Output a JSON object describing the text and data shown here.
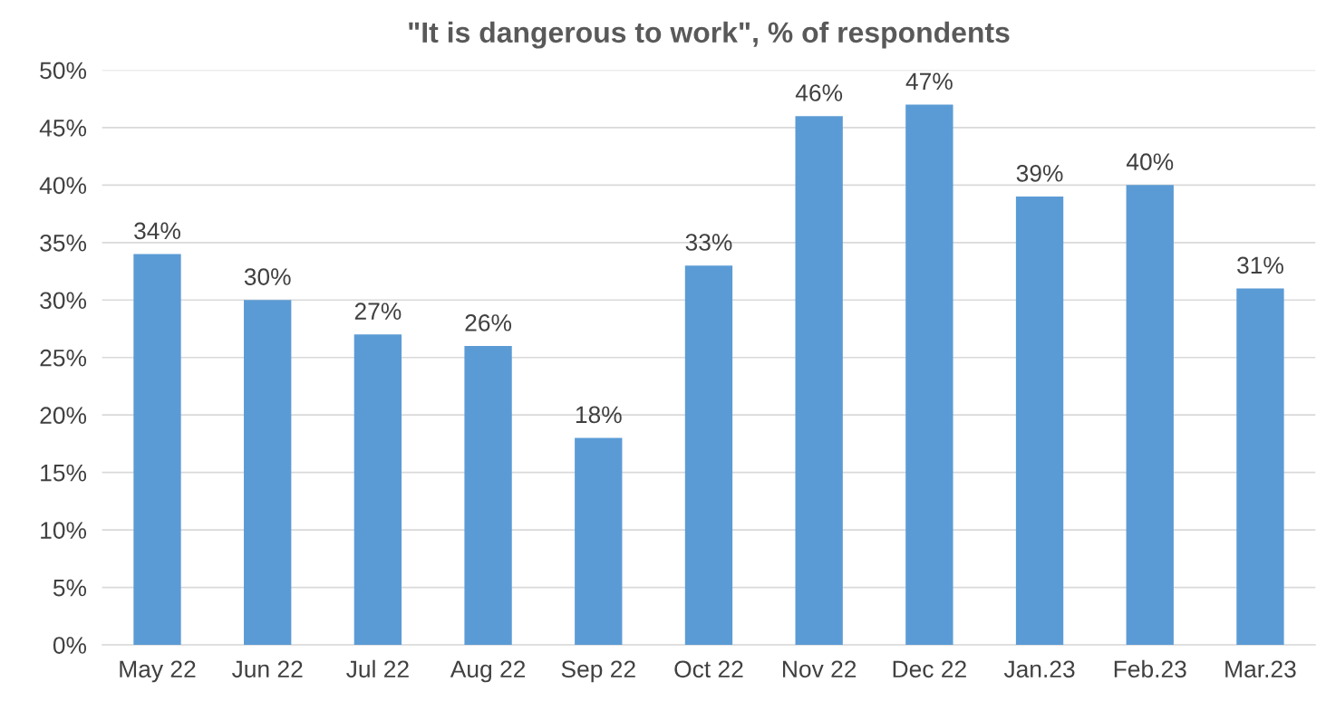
{
  "chart_data": {
    "type": "bar",
    "title": "\"It is dangerous to work\", % of respondents",
    "categories": [
      "May 22",
      "Jun 22",
      "Jul 22",
      "Aug 22",
      "Sep 22",
      "Oct 22",
      "Nov 22",
      "Dec 22",
      "Jan.23",
      "Feb.23",
      "Mar.23"
    ],
    "values": [
      34,
      30,
      27,
      26,
      18,
      33,
      46,
      47,
      39,
      40,
      31
    ],
    "value_labels": [
      "34%",
      "30%",
      "27%",
      "26%",
      "18%",
      "33%",
      "46%",
      "47%",
      "39%",
      "40%",
      "31%"
    ],
    "color": "#5b9bd5",
    "ylim": [
      0,
      50
    ],
    "yticks": [
      {
        "value": 0,
        "label": "0%"
      },
      {
        "value": 5,
        "label": "5%"
      },
      {
        "value": 10,
        "label": "10%"
      },
      {
        "value": 15,
        "label": "15%"
      },
      {
        "value": 20,
        "label": "20%"
      },
      {
        "value": 25,
        "label": "25%"
      },
      {
        "value": 30,
        "label": "30%"
      },
      {
        "value": 35,
        "label": "35%"
      },
      {
        "value": 40,
        "label": "40%"
      },
      {
        "value": 45,
        "label": "45%"
      },
      {
        "value": 50,
        "label": "50%"
      }
    ],
    "grid": "y"
  }
}
